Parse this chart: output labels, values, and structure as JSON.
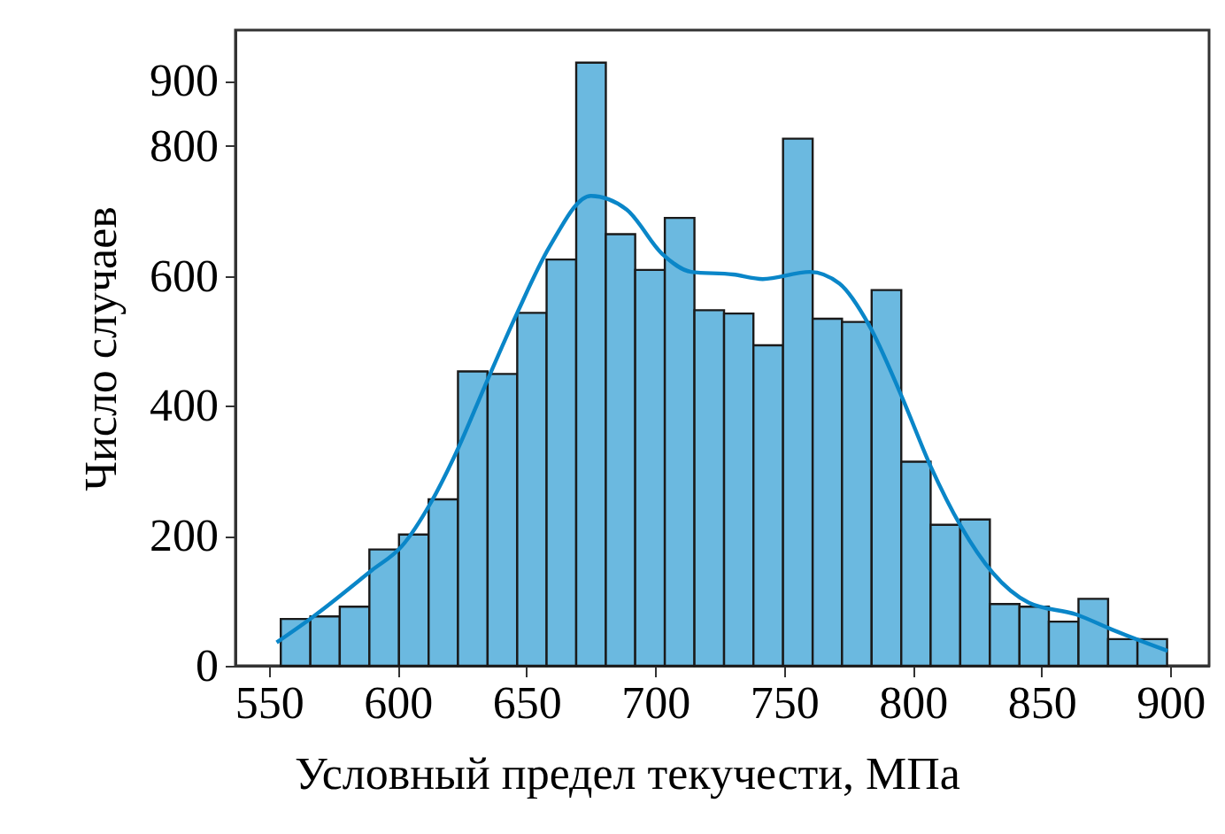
{
  "chart_data": {
    "type": "histogram",
    "xlabel": "Условный предел текучести, МПа",
    "ylabel": "Число случаев",
    "color": "#6bb9e0",
    "bins": [
      554.6,
      566.1,
      577.5,
      589.0,
      600.5,
      612.0,
      623.4,
      634.9,
      646.4,
      657.8,
      669.3,
      680.8,
      692.2,
      703.7,
      715.2,
      726.7,
      738.1,
      749.6,
      761.1,
      772.5,
      784.0,
      795.5,
      806.9,
      818.4,
      829.9,
      841.4,
      852.8,
      864.3,
      875.8,
      887.2,
      898.7
    ],
    "values": [
      72,
      76,
      91,
      179,
      202,
      256,
      453,
      449,
      543,
      625,
      928,
      664,
      609,
      689,
      547,
      542,
      493,
      811,
      534,
      529,
      578,
      314,
      217,
      225,
      95,
      91,
      68,
      103,
      41,
      41
    ],
    "series": [
      {
        "type": "line",
        "color": "#0a86c8",
        "x": [
          553,
          567,
          590,
          601.6,
          613,
          623.4,
          633.7,
          646.4,
          659,
          675,
          688.9,
          702.6,
          714,
          730.2,
          741.7,
          760,
          771.5,
          783,
          795.6,
          807,
          818.6,
          831,
          845,
          863.4,
          877.1,
          898.9
        ],
        "values": [
          36,
          75,
          147,
          184,
          252,
          334,
          429,
          543,
          645,
          723,
          702,
          634,
          606,
          602,
          595,
          606,
          588,
          524,
          415,
          306,
          215,
          143,
          97,
          79,
          56,
          23
        ]
      }
    ],
    "xlim": [
      537,
      915
    ],
    "xticks": [
      550,
      600,
      650,
      700,
      750,
      800,
      850,
      900
    ],
    "ylim": [
      0,
      978
    ],
    "yticks": [
      0,
      200,
      400,
      600,
      800,
      900
    ],
    "grid": false
  }
}
